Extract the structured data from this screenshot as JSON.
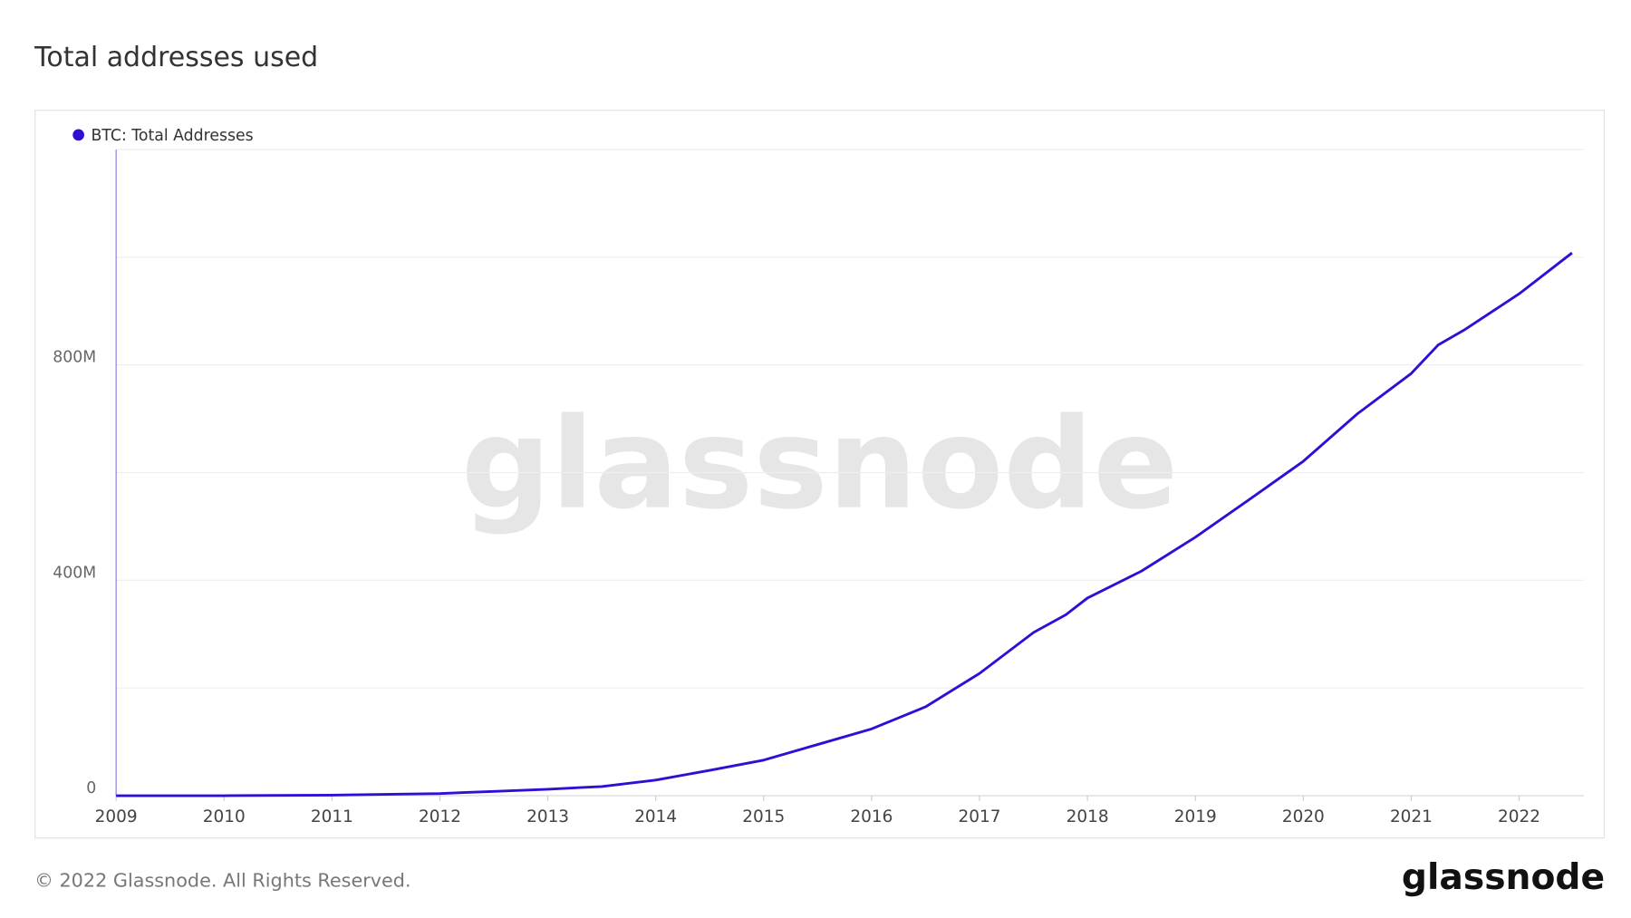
{
  "chart_data": {
    "type": "line",
    "title": "Total addresses used",
    "watermark": "glassnode",
    "footer": "© 2022 Glassnode. All Rights Reserved.",
    "logo": "glassnode",
    "x": [
      2009,
      2010,
      2011,
      2012,
      2012.5,
      2013,
      2013.5,
      2014,
      2014.5,
      2015,
      2015.5,
      2016,
      2016.5,
      2017,
      2017.5,
      2017.8,
      2018,
      2018.5,
      2019,
      2019.5,
      2020,
      2020.5,
      2021,
      2021.25,
      2021.5,
      2022,
      2022.49
    ],
    "series": [
      {
        "name": "BTC: Total Addresses",
        "color": "#2e0fd6",
        "values": [
          0,
          0,
          1000000,
          4000000,
          8000000,
          12000000,
          17000000,
          29000000,
          47000000,
          66000000,
          95000000,
          124000000,
          165000000,
          227000000,
          303000000,
          336000000,
          367000000,
          417000000,
          480000000,
          550000000,
          621000000,
          709000000,
          784000000,
          837000000,
          866000000,
          932000000,
          1008000000
        ]
      }
    ],
    "xlim": [
      2009,
      2022.6
    ],
    "xticks": [
      2009,
      2010,
      2011,
      2012,
      2013,
      2014,
      2015,
      2016,
      2017,
      2018,
      2019,
      2020,
      2021,
      2022
    ],
    "ylim": [
      0,
      1200000000
    ],
    "yticks": [
      0,
      {
        "value": 200000000,
        "label": null
      },
      {
        "value": 400000000,
        "label": "400M"
      },
      {
        "value": 600000000,
        "label": null
      },
      {
        "value": 800000000,
        "label": "800M"
      },
      {
        "value": 1000000000,
        "label": null
      },
      {
        "value": 1200000000,
        "label": null
      }
    ],
    "grid": true
  }
}
